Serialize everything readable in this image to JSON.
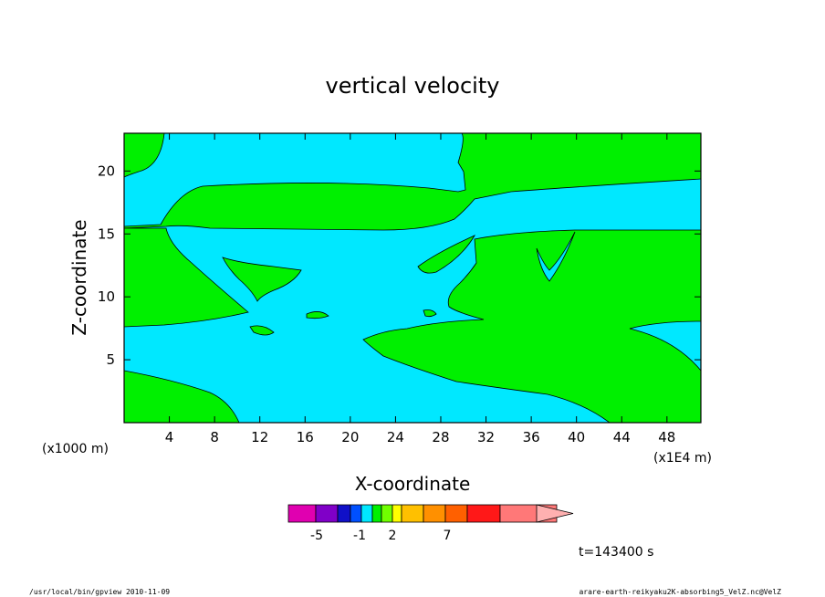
{
  "chart_data": {
    "type": "contour",
    "title": "vertical velocity",
    "xlabel": "X-coordinate",
    "ylabel": "Z-coordinate",
    "x_unit_note": "(x1E4 m)",
    "z_unit_note": "(x1000 m)",
    "xlim": [
      0,
      51
    ],
    "ylim": [
      0,
      23
    ],
    "x_ticks": [
      4,
      8,
      12,
      16,
      20,
      24,
      28,
      32,
      36,
      40,
      44,
      48
    ],
    "x_tick_labels": [
      "4",
      "8",
      "12",
      "16",
      "20",
      "24",
      "28",
      "32",
      "36",
      "40",
      "44",
      "48"
    ],
    "y_ticks": [
      5,
      10,
      15,
      20
    ],
    "y_tick_labels": [
      "5",
      "10",
      "15",
      "20"
    ],
    "regions": [
      {
        "name": "positive",
        "color": "#00f000"
      },
      {
        "name": "negative",
        "color": "#00e8ff"
      }
    ],
    "colorbar": {
      "colors": [
        "#e000b0",
        "#8000c8",
        "#1010c8",
        "#0050ff",
        "#00e8ff",
        "#00f000",
        "#70ff00",
        "#ffff00",
        "#ffc000",
        "#ff9000",
        "#ff6000",
        "#ff1818",
        "#ff7878",
        "#ffb0b0"
      ],
      "tick_labels": [
        "-5",
        "-1",
        "2",
        "7"
      ]
    },
    "time_label": "t=143400 s"
  },
  "footer": {
    "left": "/usr/local/bin/gpview  2010-11-09",
    "right": "arare-earth-reikyaku2K-absorbing5_VelZ.nc@VelZ"
  }
}
